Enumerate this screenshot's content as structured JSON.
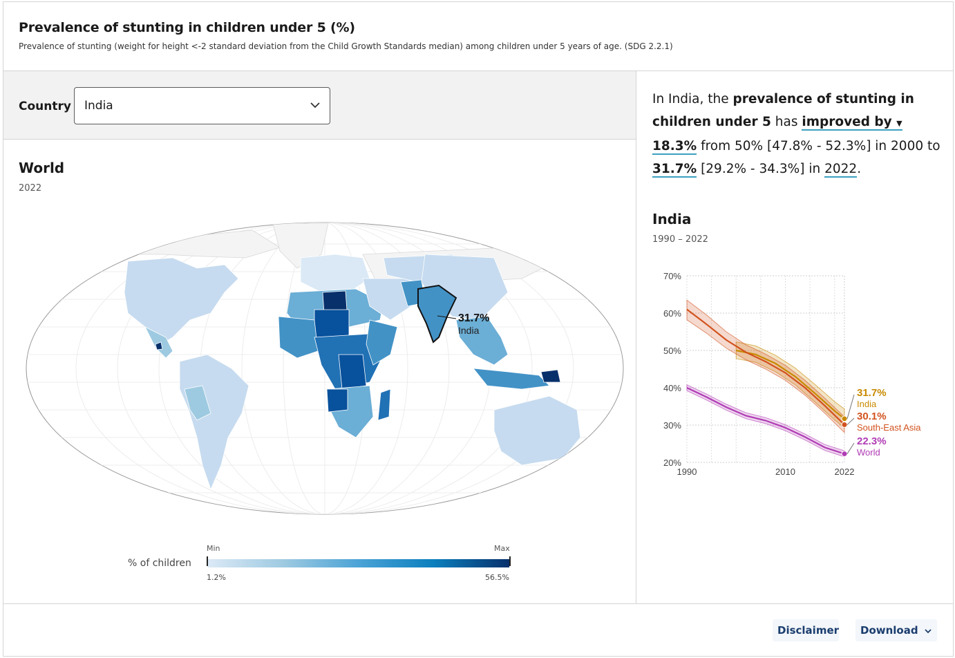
{
  "header": {
    "title": "Prevalence of stunting in children under 5 (%)",
    "subtitle": "Prevalence of stunting (weight for height <-2 standard deviation from the Child Growth Standards median) among children under 5 years of age. (SDG 2.2.1)"
  },
  "controls": {
    "country_label": "Country",
    "country_value": "India"
  },
  "map": {
    "title": "World",
    "year": "2022",
    "callout_value": "31.7%",
    "callout_label": "India",
    "legend": {
      "title": "% of children",
      "min_label": "Min",
      "max_label": "Max",
      "min_value": "1.2%",
      "max_value": "56.5%"
    }
  },
  "summary": {
    "p1": "In India, the ",
    "indicator": "prevalence of stunting in children under 5",
    "p2": " has ",
    "trend": "improved by",
    "arrow": "▼",
    "change": "18.3%",
    "p3": " from 50% [47.8% - 52.3%] in 2000 to ",
    "latest": "31.7%",
    "p4": " [29.2% - 34.3%] in ",
    "latest_year": "2022",
    "p5": "."
  },
  "line_chart": {
    "title": "India",
    "years": "1990 – 2022"
  },
  "chart_data": {
    "type": "line",
    "xlim": [
      1990,
      2022
    ],
    "ylim": [
      20,
      70
    ],
    "x_ticks": [
      "1990",
      "2010",
      "2022"
    ],
    "y_ticks": [
      "70%",
      "60%",
      "50%",
      "40%",
      "30%",
      "20%"
    ],
    "grid": true,
    "series": [
      {
        "name": "India",
        "color": "#c88a00",
        "end_label": "31.7%",
        "points": [
          [
            2000,
            50.0
          ],
          [
            2004,
            48.9
          ],
          [
            2008,
            46.5
          ],
          [
            2012,
            43.0
          ],
          [
            2016,
            38.5
          ],
          [
            2020,
            33.8
          ],
          [
            2022,
            31.7
          ]
        ],
        "band": [
          [
            2000,
            47.8,
            52.3
          ],
          [
            2004,
            46.8,
            51.2
          ],
          [
            2008,
            44.3,
            48.7
          ],
          [
            2012,
            40.8,
            45.3
          ],
          [
            2016,
            36.2,
            40.9
          ],
          [
            2020,
            31.4,
            36.3
          ],
          [
            2022,
            29.2,
            34.3
          ]
        ]
      },
      {
        "name": "South-East Asia",
        "color": "#d2521e",
        "end_label": "30.1%",
        "points": [
          [
            1990,
            61.0
          ],
          [
            1994,
            57.0
          ],
          [
            1998,
            52.8
          ],
          [
            2002,
            49.5
          ],
          [
            2006,
            47.0
          ],
          [
            2010,
            44.0
          ],
          [
            2014,
            40.0
          ],
          [
            2018,
            35.2
          ],
          [
            2022,
            30.1
          ]
        ],
        "band": [
          [
            1990,
            58.2,
            63.5
          ],
          [
            1994,
            54.6,
            59.5
          ],
          [
            1998,
            50.6,
            55.0
          ],
          [
            2002,
            47.5,
            51.5
          ],
          [
            2006,
            45.0,
            49.0
          ],
          [
            2010,
            42.0,
            46.0
          ],
          [
            2014,
            38.0,
            42.0
          ],
          [
            2018,
            33.2,
            37.2
          ],
          [
            2022,
            28.0,
            32.2
          ]
        ]
      },
      {
        "name": "World",
        "color": "#b03cb4",
        "end_label": "22.3%",
        "points": [
          [
            1990,
            40.0
          ],
          [
            1994,
            37.5
          ],
          [
            1998,
            34.8
          ],
          [
            2002,
            32.5
          ],
          [
            2006,
            31.2
          ],
          [
            2010,
            29.3
          ],
          [
            2014,
            26.8
          ],
          [
            2018,
            24.0
          ],
          [
            2022,
            22.3
          ]
        ],
        "band": [
          [
            1990,
            39.2,
            40.8
          ],
          [
            1994,
            36.7,
            38.3
          ],
          [
            1998,
            34.0,
            35.6
          ],
          [
            2002,
            31.7,
            33.3
          ],
          [
            2006,
            30.4,
            32.0
          ],
          [
            2010,
            28.5,
            30.1
          ],
          [
            2014,
            26.0,
            27.6
          ],
          [
            2018,
            23.2,
            24.8
          ],
          [
            2022,
            21.5,
            23.1
          ]
        ]
      }
    ]
  },
  "footer": {
    "disclaimer": "Disclaimer",
    "download": "Download"
  },
  "colors": {
    "accent_underline": "#3aa0c0",
    "button_text": "#1a3d6e",
    "map_low": "#dbe9f6",
    "map_high": "#08306b"
  }
}
